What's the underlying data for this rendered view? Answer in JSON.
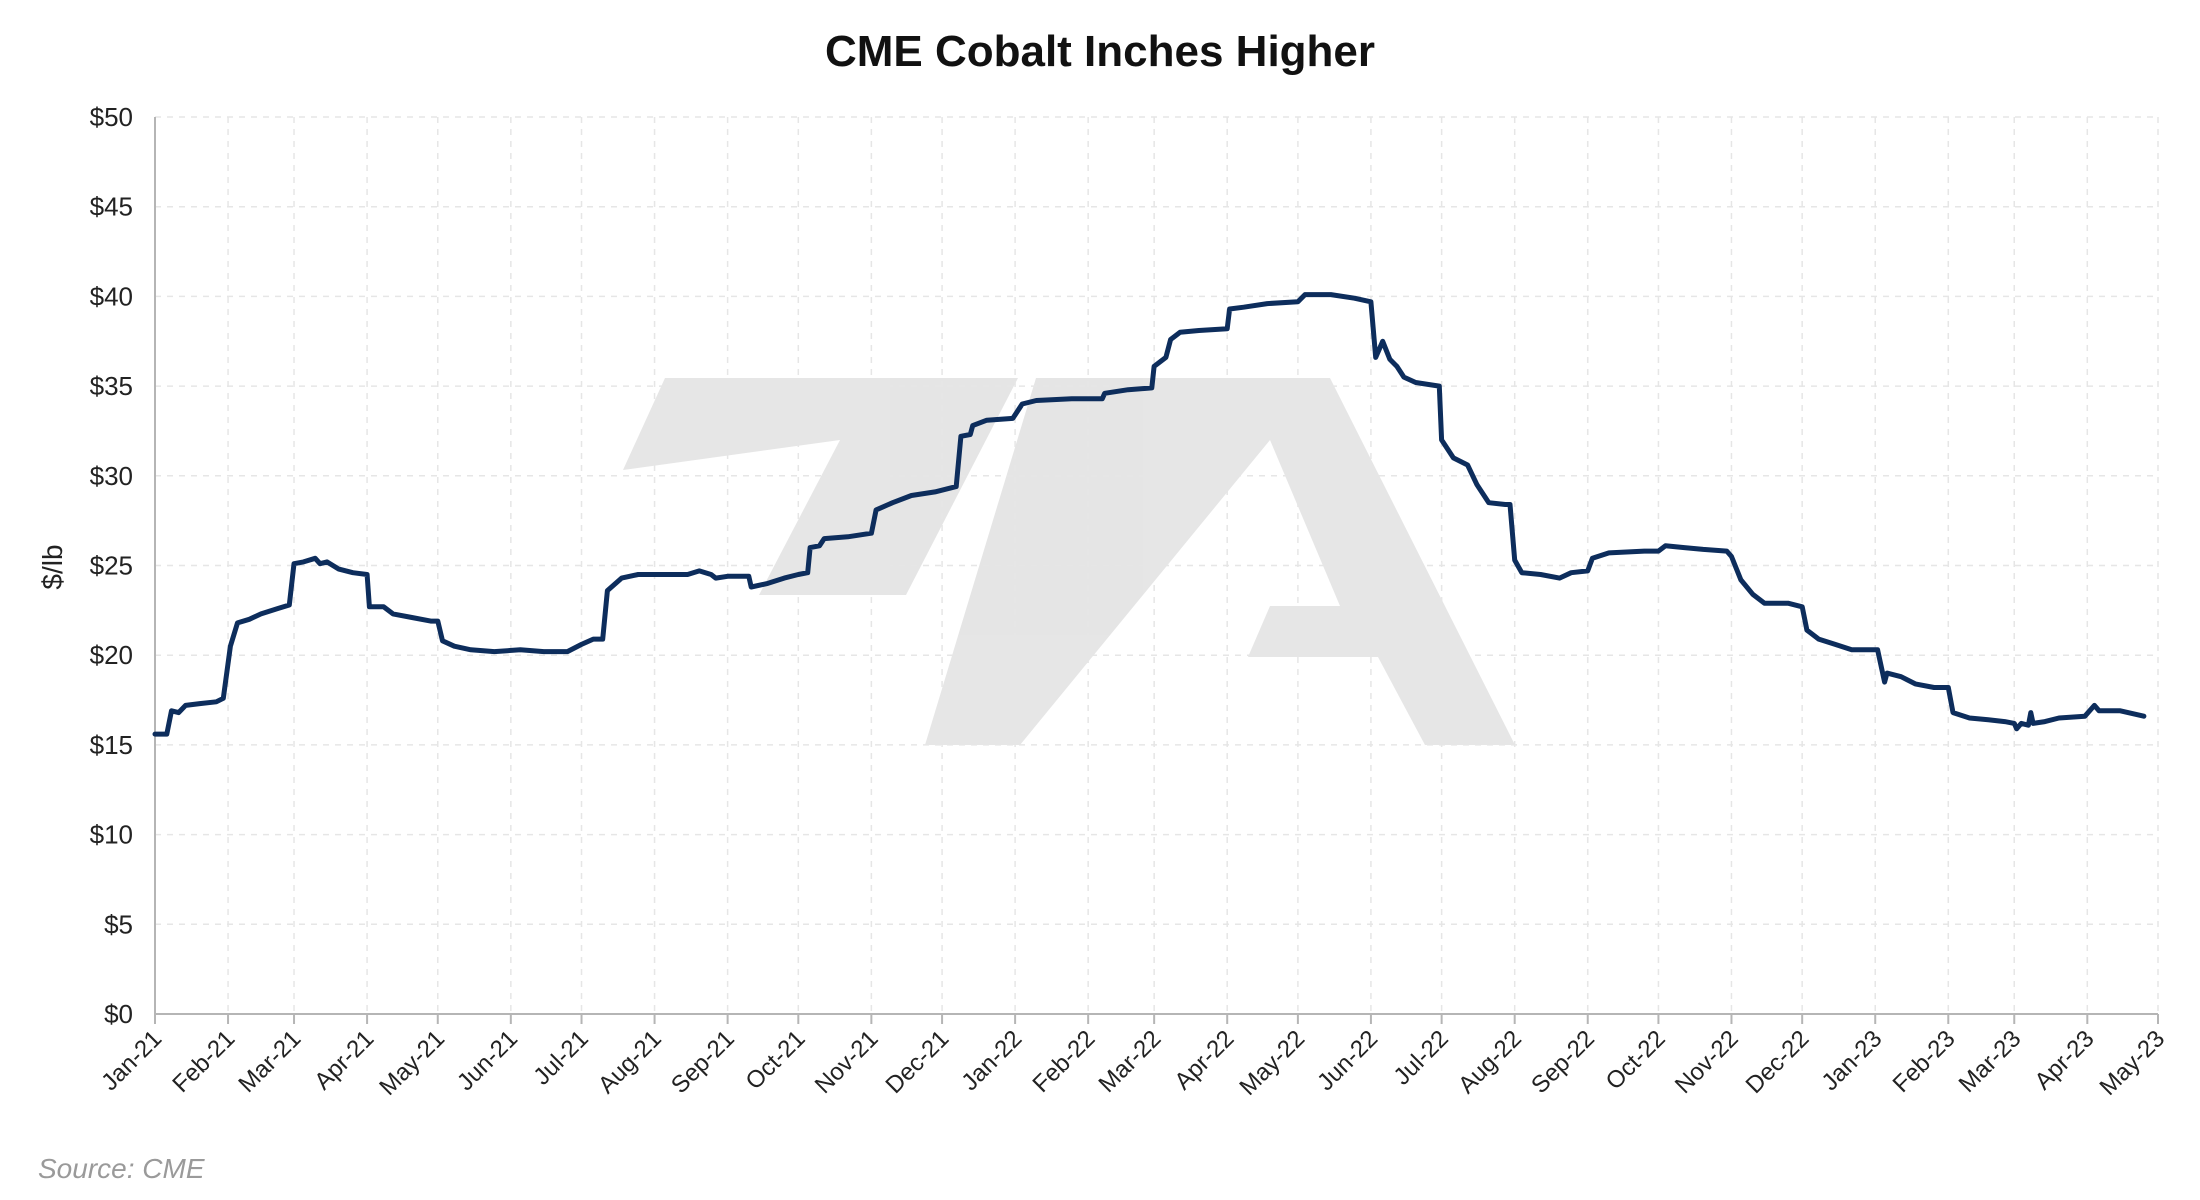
{
  "chart_data": {
    "type": "line",
    "title": "CME Cobalt Inches Higher",
    "ylabel": "$/lb",
    "xlabel": "",
    "source": "Source: CME",
    "ylim": [
      0,
      50
    ],
    "y_ticks": [
      0,
      5,
      10,
      15,
      20,
      25,
      30,
      35,
      40,
      45,
      50
    ],
    "y_tick_labels": [
      "$0",
      "$5",
      "$10",
      "$15",
      "$20",
      "$25",
      "$30",
      "$35",
      "$40",
      "$45",
      "$50"
    ],
    "x_ticks": [
      "2021-01-01",
      "2021-02-01",
      "2021-03-01",
      "2021-04-01",
      "2021-05-01",
      "2021-06-01",
      "2021-07-01",
      "2021-08-01",
      "2021-09-01",
      "2021-10-01",
      "2021-11-01",
      "2021-12-01",
      "2022-01-01",
      "2022-02-01",
      "2022-03-01",
      "2022-04-01",
      "2022-05-01",
      "2022-06-01",
      "2022-07-01",
      "2022-08-01",
      "2022-09-01",
      "2022-10-01",
      "2022-11-01",
      "2022-12-01",
      "2023-01-01",
      "2023-02-01",
      "2023-03-01",
      "2023-04-01",
      "2023-05-01"
    ],
    "x_tick_labels": [
      "Jan-21",
      "Feb-21",
      "Mar-21",
      "Apr-21",
      "May-21",
      "Jun-21",
      "Jul-21",
      "Aug-21",
      "Sep-21",
      "Oct-21",
      "Nov-21",
      "Dec-21",
      "Jan-22",
      "Feb-22",
      "Mar-22",
      "Apr-22",
      "May-22",
      "Jun-22",
      "Jul-22",
      "Aug-22",
      "Sep-22",
      "Oct-22",
      "Nov-22",
      "Dec-22",
      "Jan-23",
      "Feb-23",
      "Mar-23",
      "Apr-23",
      "May-23"
    ],
    "grid": true,
    "legend": "none",
    "series": [
      {
        "color": "#0d2d5c",
        "points": [
          [
            "2021-01-01",
            15.6
          ],
          [
            "2021-01-06",
            15.6
          ],
          [
            "2021-01-08",
            16.9
          ],
          [
            "2021-01-11",
            16.8
          ],
          [
            "2021-01-14",
            17.2
          ],
          [
            "2021-01-20",
            17.3
          ],
          [
            "2021-01-27",
            17.4
          ],
          [
            "2021-01-30",
            17.6
          ],
          [
            "2021-02-02",
            20.5
          ],
          [
            "2021-02-05",
            21.8
          ],
          [
            "2021-02-10",
            22.0
          ],
          [
            "2021-02-15",
            22.3
          ],
          [
            "2021-02-22",
            22.6
          ],
          [
            "2021-02-27",
            22.8
          ],
          [
            "2021-03-01",
            25.1
          ],
          [
            "2021-03-05",
            25.2
          ],
          [
            "2021-03-10",
            25.4
          ],
          [
            "2021-03-12",
            25.1
          ],
          [
            "2021-03-15",
            25.2
          ],
          [
            "2021-03-20",
            24.8
          ],
          [
            "2021-03-26",
            24.6
          ],
          [
            "2021-04-01",
            24.5
          ],
          [
            "2021-04-02",
            22.7
          ],
          [
            "2021-04-08",
            22.7
          ],
          [
            "2021-04-12",
            22.3
          ],
          [
            "2021-04-20",
            22.1
          ],
          [
            "2021-04-28",
            21.9
          ],
          [
            "2021-05-01",
            21.9
          ],
          [
            "2021-05-03",
            20.8
          ],
          [
            "2021-05-08",
            20.5
          ],
          [
            "2021-05-15",
            20.3
          ],
          [
            "2021-05-25",
            20.2
          ],
          [
            "2021-06-05",
            20.3
          ],
          [
            "2021-06-15",
            20.2
          ],
          [
            "2021-06-25",
            20.2
          ],
          [
            "2021-07-01",
            20.6
          ],
          [
            "2021-07-06",
            20.9
          ],
          [
            "2021-07-10",
            20.9
          ],
          [
            "2021-07-12",
            23.6
          ],
          [
            "2021-07-18",
            24.3
          ],
          [
            "2021-07-25",
            24.5
          ],
          [
            "2021-08-05",
            24.5
          ],
          [
            "2021-08-15",
            24.5
          ],
          [
            "2021-08-20",
            24.7
          ],
          [
            "2021-08-25",
            24.5
          ],
          [
            "2021-08-27",
            24.3
          ],
          [
            "2021-09-01",
            24.4
          ],
          [
            "2021-09-10",
            24.4
          ],
          [
            "2021-09-11",
            23.8
          ],
          [
            "2021-09-18",
            24.0
          ],
          [
            "2021-09-25",
            24.3
          ],
          [
            "2021-10-01",
            24.5
          ],
          [
            "2021-10-05",
            24.6
          ],
          [
            "2021-10-06",
            26.0
          ],
          [
            "2021-10-10",
            26.1
          ],
          [
            "2021-10-12",
            26.5
          ],
          [
            "2021-10-22",
            26.6
          ],
          [
            "2021-11-01",
            26.8
          ],
          [
            "2021-11-03",
            28.1
          ],
          [
            "2021-11-10",
            28.5
          ],
          [
            "2021-11-18",
            28.9
          ],
          [
            "2021-11-28",
            29.1
          ],
          [
            "2021-12-07",
            29.4
          ],
          [
            "2021-12-09",
            32.2
          ],
          [
            "2021-12-13",
            32.3
          ],
          [
            "2021-12-14",
            32.8
          ],
          [
            "2021-12-20",
            33.1
          ],
          [
            "2021-12-31",
            33.2
          ],
          [
            "2022-01-04",
            34.0
          ],
          [
            "2022-01-10",
            34.2
          ],
          [
            "2022-01-25",
            34.3
          ],
          [
            "2022-02-01",
            34.3
          ],
          [
            "2022-02-07",
            34.3
          ],
          [
            "2022-02-08",
            34.6
          ],
          [
            "2022-02-18",
            34.8
          ],
          [
            "2022-02-28",
            34.9
          ],
          [
            "2022-03-01",
            36.1
          ],
          [
            "2022-03-06",
            36.6
          ],
          [
            "2022-03-08",
            37.6
          ],
          [
            "2022-03-12",
            38.0
          ],
          [
            "2022-03-20",
            38.1
          ],
          [
            "2022-04-01",
            38.2
          ],
          [
            "2022-04-02",
            39.3
          ],
          [
            "2022-04-08",
            39.4
          ],
          [
            "2022-04-18",
            39.6
          ],
          [
            "2022-05-01",
            39.7
          ],
          [
            "2022-05-04",
            40.1
          ],
          [
            "2022-05-15",
            40.1
          ],
          [
            "2022-05-25",
            39.9
          ],
          [
            "2022-06-01",
            39.7
          ],
          [
            "2022-06-03",
            36.6
          ],
          [
            "2022-06-06",
            37.5
          ],
          [
            "2022-06-09",
            36.5
          ],
          [
            "2022-06-12",
            36.1
          ],
          [
            "2022-06-15",
            35.5
          ],
          [
            "2022-06-20",
            35.2
          ],
          [
            "2022-06-30",
            35.0
          ],
          [
            "2022-07-01",
            32.0
          ],
          [
            "2022-07-06",
            31.0
          ],
          [
            "2022-07-12",
            30.6
          ],
          [
            "2022-07-16",
            29.5
          ],
          [
            "2022-07-21",
            28.5
          ],
          [
            "2022-07-28",
            28.4
          ],
          [
            "2022-07-30",
            28.4
          ],
          [
            "2022-08-01",
            25.3
          ],
          [
            "2022-08-04",
            24.6
          ],
          [
            "2022-08-12",
            24.5
          ],
          [
            "2022-08-20",
            24.3
          ],
          [
            "2022-08-25",
            24.6
          ],
          [
            "2022-09-01",
            24.7
          ],
          [
            "2022-09-03",
            25.4
          ],
          [
            "2022-09-10",
            25.7
          ],
          [
            "2022-09-25",
            25.8
          ],
          [
            "2022-10-01",
            25.8
          ],
          [
            "2022-10-04",
            26.1
          ],
          [
            "2022-10-12",
            26.0
          ],
          [
            "2022-10-20",
            25.9
          ],
          [
            "2022-10-30",
            25.8
          ],
          [
            "2022-11-01",
            25.5
          ],
          [
            "2022-11-05",
            24.2
          ],
          [
            "2022-11-10",
            23.4
          ],
          [
            "2022-11-15",
            22.9
          ],
          [
            "2022-11-25",
            22.9
          ],
          [
            "2022-12-01",
            22.7
          ],
          [
            "2022-12-03",
            21.4
          ],
          [
            "2022-12-08",
            20.9
          ],
          [
            "2022-12-15",
            20.6
          ],
          [
            "2022-12-22",
            20.3
          ],
          [
            "2023-01-02",
            20.3
          ],
          [
            "2023-01-05",
            18.5
          ],
          [
            "2023-01-06",
            19.0
          ],
          [
            "2023-01-12",
            18.8
          ],
          [
            "2023-01-18",
            18.4
          ],
          [
            "2023-01-26",
            18.2
          ],
          [
            "2023-02-01",
            18.2
          ],
          [
            "2023-02-03",
            16.8
          ],
          [
            "2023-02-10",
            16.5
          ],
          [
            "2023-02-18",
            16.4
          ],
          [
            "2023-02-25",
            16.3
          ],
          [
            "2023-03-01",
            16.2
          ],
          [
            "2023-03-02",
            15.9
          ],
          [
            "2023-03-04",
            16.2
          ],
          [
            "2023-03-07",
            16.1
          ],
          [
            "2023-03-08",
            16.8
          ],
          [
            "2023-03-09",
            16.2
          ],
          [
            "2023-03-14",
            16.3
          ],
          [
            "2023-03-20",
            16.5
          ],
          [
            "2023-03-31",
            16.6
          ],
          [
            "2023-04-04",
            17.2
          ],
          [
            "2023-04-06",
            16.9
          ],
          [
            "2023-04-15",
            16.9
          ],
          [
            "2023-04-25",
            16.6
          ]
        ]
      }
    ]
  }
}
